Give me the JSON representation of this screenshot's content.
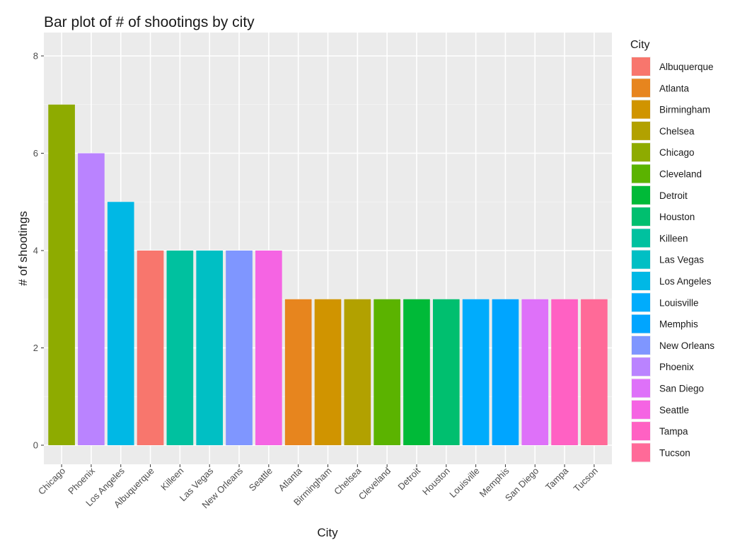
{
  "chart_data": {
    "type": "bar",
    "title": "Bar plot of # of shootings by city",
    "xlabel": "City",
    "ylabel": "# of shootings",
    "ylim": [
      0,
      8
    ],
    "yticks": [
      0,
      2,
      4,
      6,
      8
    ],
    "grid": true,
    "legend_title": "City",
    "legend_position": "right",
    "categories": [
      "Chicago",
      "Phoenix",
      "Los Angeles",
      "Albuquerque",
      "Killeen",
      "Las Vegas",
      "New Orleans",
      "Seattle",
      "Atlanta",
      "Birmingham",
      "Chelsea",
      "Cleveland",
      "Detroit",
      "Houston",
      "Louisville",
      "Memphis",
      "San Diego",
      "Tampa",
      "Tucson"
    ],
    "values": [
      7,
      6,
      5,
      4,
      4,
      4,
      4,
      4,
      3,
      3,
      3,
      3,
      3,
      3,
      3,
      3,
      3,
      3,
      3
    ],
    "legend": [
      {
        "name": "Albuquerque",
        "color": "#F8766D"
      },
      {
        "name": "Atlanta",
        "color": "#E7851E"
      },
      {
        "name": "Birmingham",
        "color": "#D09400"
      },
      {
        "name": "Chelsea",
        "color": "#B2A100"
      },
      {
        "name": "Chicago",
        "color": "#8EAB00"
      },
      {
        "name": "Cleveland",
        "color": "#5BB300"
      },
      {
        "name": "Detroit",
        "color": "#00BA38"
      },
      {
        "name": "Houston",
        "color": "#00BF6F"
      },
      {
        "name": "Killeen",
        "color": "#00C19F"
      },
      {
        "name": "Las Vegas",
        "color": "#00BFC4"
      },
      {
        "name": "Los Angeles",
        "color": "#00B8E5"
      },
      {
        "name": "Louisville",
        "color": "#00ACFC"
      },
      {
        "name": "Memphis",
        "color": "#00A5FF"
      },
      {
        "name": "New Orleans",
        "color": "#7F96FF"
      },
      {
        "name": "Phoenix",
        "color": "#BA83FF"
      },
      {
        "name": "San Diego",
        "color": "#DE71F9"
      },
      {
        "name": "Seattle",
        "color": "#F564E3"
      },
      {
        "name": "Tampa",
        "color": "#FF61C3"
      },
      {
        "name": "Tucson",
        "color": "#FF6A98"
      }
    ]
  }
}
